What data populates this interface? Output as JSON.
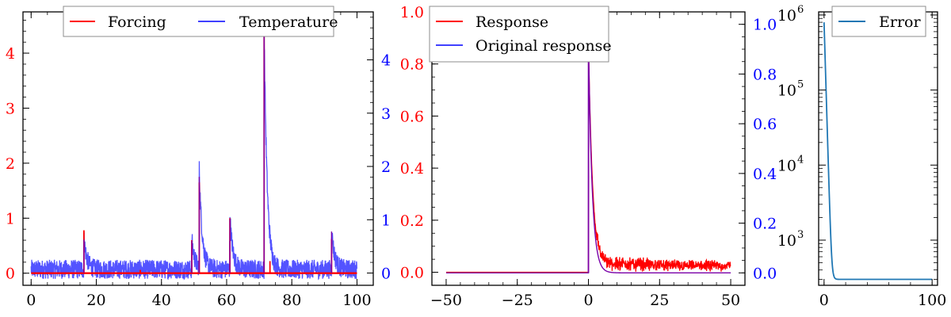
{
  "chart_data": [
    {
      "type": "line",
      "title": "",
      "xlabel": "",
      "ylabel": "",
      "xlim": [
        -2.5,
        105
      ],
      "ylim_left": [
        -0.22,
        4.75
      ],
      "ylim_right": [
        -0.23,
        4.9
      ],
      "x_ticks": [
        0,
        20,
        40,
        60,
        80,
        100
      ],
      "x_tick_labels": [
        "0",
        "20",
        "40",
        "60",
        "80",
        "100"
      ],
      "y_left_ticks": [
        0,
        1,
        2,
        3,
        4
      ],
      "y_left_tick_labels": [
        "0",
        "1",
        "2",
        "3",
        "4"
      ],
      "y_right_ticks": [
        0,
        1,
        2,
        3,
        4
      ],
      "y_right_tick_labels": [
        "0",
        "1",
        "2",
        "3",
        "4"
      ],
      "legend": {
        "placement": "top-center",
        "columns": 2,
        "entries": [
          "Forcing",
          "Temperature"
        ]
      },
      "series": [
        {
          "name": "Forcing",
          "axis": "left",
          "color": "#ff0000",
          "baseline": 0,
          "spikes": [
            {
              "x": 16.2,
              "y": 0.78
            },
            {
              "x": 33.5,
              "y": 0.06
            },
            {
              "x": 49.3,
              "y": 0.6
            },
            {
              "x": 51.6,
              "y": 1.65
            },
            {
              "x": 61.0,
              "y": 1.0
            },
            {
              "x": 71.5,
              "y": 4.58
            },
            {
              "x": 73.3,
              "y": 0.22
            },
            {
              "x": 92.2,
              "y": 0.62
            }
          ]
        },
        {
          "name": "Temperature",
          "axis": "right",
          "color": "#4040ff",
          "noise_floor": 0.07,
          "peaks": [
            {
              "x": 16.2,
              "y": 0.66
            },
            {
              "x": 49.3,
              "y": 0.64
            },
            {
              "x": 51.6,
              "y": 1.9
            },
            {
              "x": 61.0,
              "y": 1.07
            },
            {
              "x": 71.5,
              "y": 4.7
            },
            {
              "x": 92.2,
              "y": 0.82
            }
          ]
        }
      ]
    },
    {
      "type": "line",
      "title": "",
      "xlabel": "",
      "ylabel": "",
      "xlim": [
        -55,
        55
      ],
      "ylim_left": [
        -0.05,
        1.0
      ],
      "ylim_right": [
        -0.05,
        1.05
      ],
      "x_ticks": [
        -50,
        -25,
        0,
        25,
        50
      ],
      "x_tick_labels": [
        "−50",
        "−25",
        "0",
        "25",
        "50"
      ],
      "y_left_ticks": [
        0.0,
        0.2,
        0.4,
        0.6,
        0.8,
        1.0
      ],
      "y_left_tick_labels": [
        "0.0",
        "0.2",
        "0.4",
        "0.6",
        "0.8",
        "1.0"
      ],
      "y_right_ticks": [
        0.0,
        0.2,
        0.4,
        0.6,
        0.8,
        1.0
      ],
      "y_right_tick_labels": [
        "0.0",
        "0.2",
        "0.4",
        "0.6",
        "0.8",
        "1.0"
      ],
      "legend": {
        "placement": "top-left",
        "columns": 1,
        "entries": [
          "Response",
          "Original response"
        ]
      },
      "series": [
        {
          "name": "Response",
          "axis": "left",
          "color": "#ff0000",
          "x_range": [
            -50,
            50
          ],
          "peak": {
            "x": 0,
            "y": 0.88
          },
          "decay": 1.5,
          "tail_noise": 0.03
        },
        {
          "name": "Original response",
          "axis": "right",
          "color": "#4040ff",
          "x_range": [
            -50,
            50
          ],
          "peak": {
            "x": 0,
            "y": 0.95
          },
          "decay": 1.3
        }
      ]
    },
    {
      "type": "line",
      "title": "",
      "xlabel": "",
      "ylabel": "",
      "xlim": [
        -5,
        105
      ],
      "y_scale": "log",
      "ylim": [
        250,
        1100000
      ],
      "x_ticks": [
        0,
        100
      ],
      "x_tick_labels": [
        "0",
        "100"
      ],
      "y_ticks": [
        1000,
        10000,
        100000,
        1000000
      ],
      "y_tick_labels_base": "10",
      "y_tick_labels_exp": [
        "3",
        "4",
        "5",
        "6"
      ],
      "legend": {
        "placement": "top-right",
        "columns": 1,
        "entries": [
          "Error"
        ]
      },
      "series": [
        {
          "name": "Error",
          "color": "#1f77b4",
          "start": {
            "x": 0,
            "y": 800000
          },
          "floor": 300,
          "decay": 0.9
        }
      ]
    }
  ]
}
